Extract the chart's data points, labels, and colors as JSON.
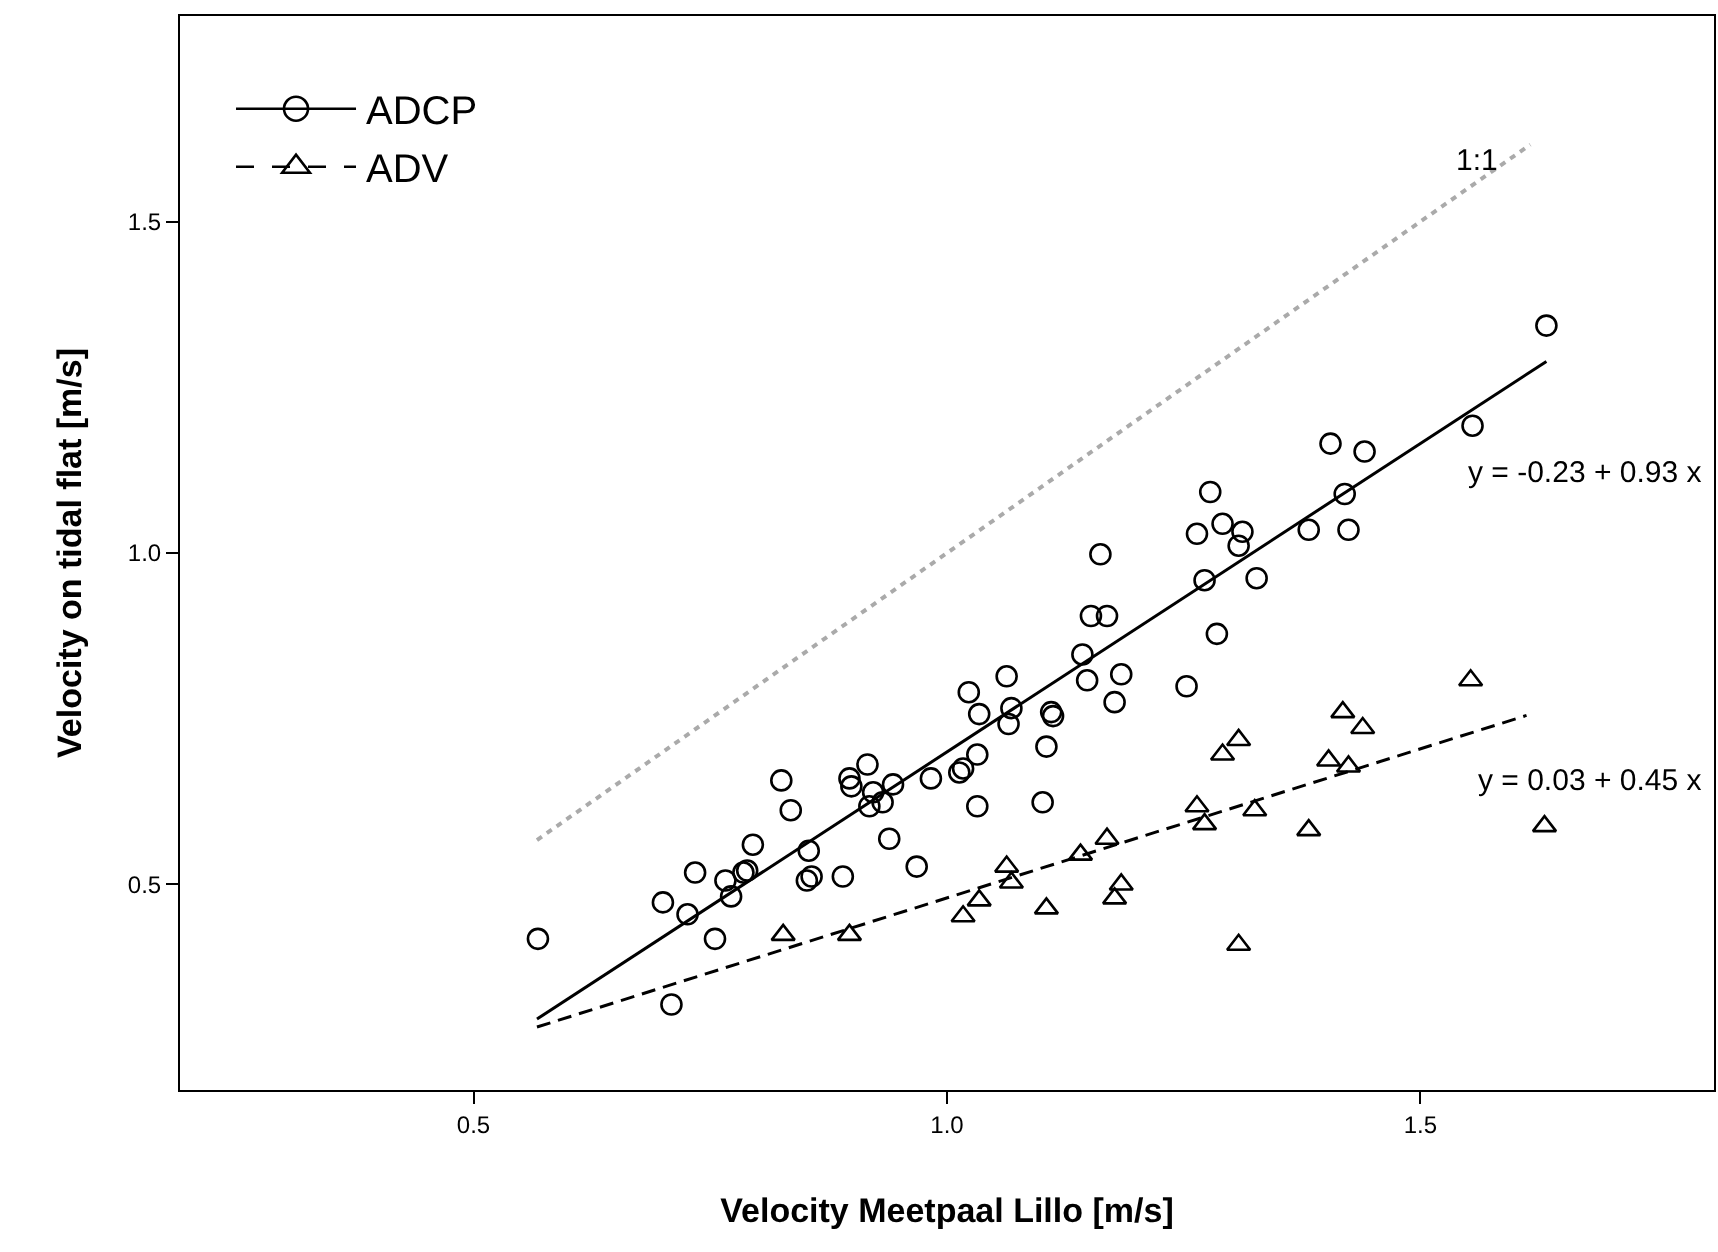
{
  "chart_data": {
    "type": "scatter",
    "xlabel": "Velocity Meetpaal Lillo [m/s]",
    "ylabel": "Velocity on tidal flat [m/s]",
    "xlim": [
      0.19,
      1.81
    ],
    "ylim": [
      0.19,
      1.81
    ],
    "xticks": [
      0.5,
      {
        "value": 1,
        "label": "1.0"
      },
      1.5
    ],
    "yticks": [
      0.5,
      {
        "value": 1,
        "label": "1.0"
      },
      1.5
    ],
    "legend": "top left",
    "series": [
      {
        "name": "ADCP",
        "marker": "circle",
        "color": "#000000",
        "x": [
          0.568,
          0.7,
          0.709,
          0.726,
          0.734,
          0.755,
          0.766,
          0.772,
          0.785,
          0.789,
          0.795,
          0.825,
          0.835,
          0.852,
          0.857,
          0.854,
          0.89,
          0.897,
          0.899,
          0.916,
          0.922,
          0.918,
          0.932,
          0.943,
          0.939,
          0.968,
          0.983,
          1.013,
          1.017,
          1.032,
          1.032,
          1.023,
          1.034,
          1.063,
          1.068,
          1.065,
          1.105,
          1.101,
          1.11,
          1.112,
          1.143,
          1.148,
          1.152,
          1.169,
          1.177,
          1.184,
          1.162,
          1.253,
          1.264,
          1.272,
          1.278,
          1.285,
          1.291,
          1.308,
          1.312,
          1.327,
          1.382,
          1.405,
          1.42,
          1.424,
          1.441,
          1.555,
          1.633
        ],
        "values": [
          0.418,
          0.473,
          0.319,
          0.455,
          0.518,
          0.418,
          0.506,
          0.482,
          0.518,
          0.521,
          0.56,
          0.657,
          0.612,
          0.506,
          0.512,
          0.551,
          0.512,
          0.66,
          0.648,
          0.681,
          0.639,
          0.618,
          0.624,
          0.651,
          0.569,
          0.527,
          0.66,
          0.669,
          0.675,
          0.696,
          0.618,
          0.79,
          0.757,
          0.814,
          0.766,
          0.742,
          0.708,
          0.624,
          0.76,
          0.754,
          0.847,
          0.808,
          0.905,
          0.905,
          0.775,
          0.817,
          0.998,
          0.799,
          1.029,
          0.959,
          1.092,
          0.878,
          1.044,
          1.011,
          1.032,
          0.962,
          1.035,
          1.165,
          1.089,
          1.035,
          1.153,
          1.192,
          1.343
        ]
      },
      {
        "type": "line",
        "line_style": "solid",
        "color": "#000000",
        "x": [
          0.567,
          1.633
        ],
        "values": [
          0.297,
          1.289
        ]
      },
      {
        "name": "ADV",
        "marker": "triangle",
        "color": "#000000",
        "x": [
          0.827,
          0.897,
          1.017,
          1.034,
          1.063,
          1.068,
          1.105,
          1.141,
          1.169,
          1.177,
          1.184,
          1.264,
          1.272,
          1.291,
          1.308,
          1.308,
          1.325,
          1.382,
          1.403,
          1.418,
          1.424,
          1.439,
          1.553,
          1.631
        ],
        "values": [
          0.424,
          0.424,
          0.452,
          0.476,
          0.527,
          0.503,
          0.464,
          0.545,
          0.569,
          0.479,
          0.5,
          0.618,
          0.591,
          0.696,
          0.718,
          0.409,
          0.612,
          0.582,
          0.687,
          0.76,
          0.678,
          0.736,
          0.808,
          0.588
        ]
      },
      {
        "type": "line",
        "line_style": "dashed",
        "color": "#000000",
        "x": [
          0.567,
          1.612
        ],
        "values": [
          0.285,
          0.755
        ]
      },
      {
        "type": "line",
        "line_style": "dotted",
        "color": "#aaaaaa",
        "x": [
          0.567,
          1.616
        ],
        "values": [
          0.567,
          1.616
        ]
      }
    ],
    "annotations": [
      "y = -0.23 + 0.93 x",
      "y = 0.03 + 0.45 x",
      "1:1"
    ]
  }
}
